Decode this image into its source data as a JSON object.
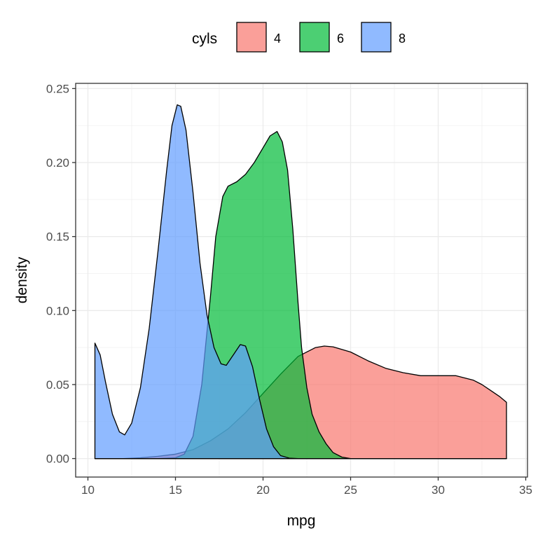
{
  "chart_data": {
    "type": "area",
    "title": "",
    "xlabel": "mpg",
    "ylabel": "density",
    "xlim": [
      9.3,
      35.1
    ],
    "ylim": [
      -0.0125,
      0.2535
    ],
    "xticks": [
      10,
      15,
      20,
      25,
      30,
      35
    ],
    "xtick_labels": [
      "10",
      "15",
      "20",
      "25",
      "30",
      "35"
    ],
    "yticks": [
      0,
      0.05,
      0.1,
      0.15,
      0.2,
      0.25
    ],
    "ytick_labels": [
      "0.00",
      "0.05",
      "0.10",
      "0.15",
      "0.20",
      "0.25"
    ],
    "grid": true,
    "legend": {
      "title": "cyls",
      "position": "top",
      "entries": [
        "4",
        "6",
        "8"
      ]
    },
    "colors": {
      "4": "#F8766D",
      "6": "#00BA38",
      "8": "#619CFF"
    },
    "alpha": 0.7,
    "series": [
      {
        "name": "4",
        "x": [
          10.4,
          12,
          13,
          14,
          15,
          16,
          17,
          18,
          19,
          20,
          21,
          22,
          23,
          23.5,
          24,
          25,
          26,
          27,
          28,
          29,
          30,
          31,
          32,
          32.5,
          33,
          33.5,
          33.9
        ],
        "y": [
          0,
          0,
          0.0005,
          0.0015,
          0.003,
          0.006,
          0.012,
          0.02,
          0.031,
          0.044,
          0.057,
          0.069,
          0.075,
          0.076,
          0.0755,
          0.072,
          0.066,
          0.061,
          0.058,
          0.056,
          0.056,
          0.056,
          0.053,
          0.05,
          0.046,
          0.042,
          0.038
        ]
      },
      {
        "name": "6",
        "x": [
          10.4,
          14,
          15,
          15.5,
          16,
          16.5,
          17,
          17.3,
          17.7,
          18,
          18.5,
          19,
          19.5,
          20,
          20.4,
          20.8,
          21.1,
          21.4,
          21.7,
          22,
          22.2,
          22.5,
          22.8,
          23.2,
          23.6,
          24,
          24.5,
          25,
          33.9
        ],
        "y": [
          0,
          0,
          0.0005,
          0.003,
          0.015,
          0.05,
          0.11,
          0.15,
          0.177,
          0.184,
          0.187,
          0.192,
          0.2,
          0.21,
          0.218,
          0.221,
          0.214,
          0.195,
          0.155,
          0.105,
          0.075,
          0.048,
          0.03,
          0.018,
          0.01,
          0.004,
          0.001,
          0,
          0
        ]
      },
      {
        "name": "8",
        "x": [
          10.4,
          10.7,
          11,
          11.4,
          11.8,
          12.1,
          12.5,
          13,
          13.5,
          14,
          14.5,
          14.8,
          15.1,
          15.3,
          15.6,
          16,
          16.4,
          16.8,
          17.2,
          17.6,
          17.9,
          18.3,
          18.7,
          19,
          19.4,
          19.8,
          20.2,
          20.6,
          21,
          21.5,
          22,
          33.9
        ],
        "y": [
          0.078,
          0.07,
          0.052,
          0.03,
          0.018,
          0.016,
          0.024,
          0.048,
          0.088,
          0.14,
          0.195,
          0.225,
          0.239,
          0.238,
          0.222,
          0.18,
          0.132,
          0.097,
          0.075,
          0.064,
          0.063,
          0.07,
          0.077,
          0.076,
          0.062,
          0.04,
          0.02,
          0.008,
          0.002,
          0.0003,
          0,
          0
        ]
      }
    ]
  }
}
